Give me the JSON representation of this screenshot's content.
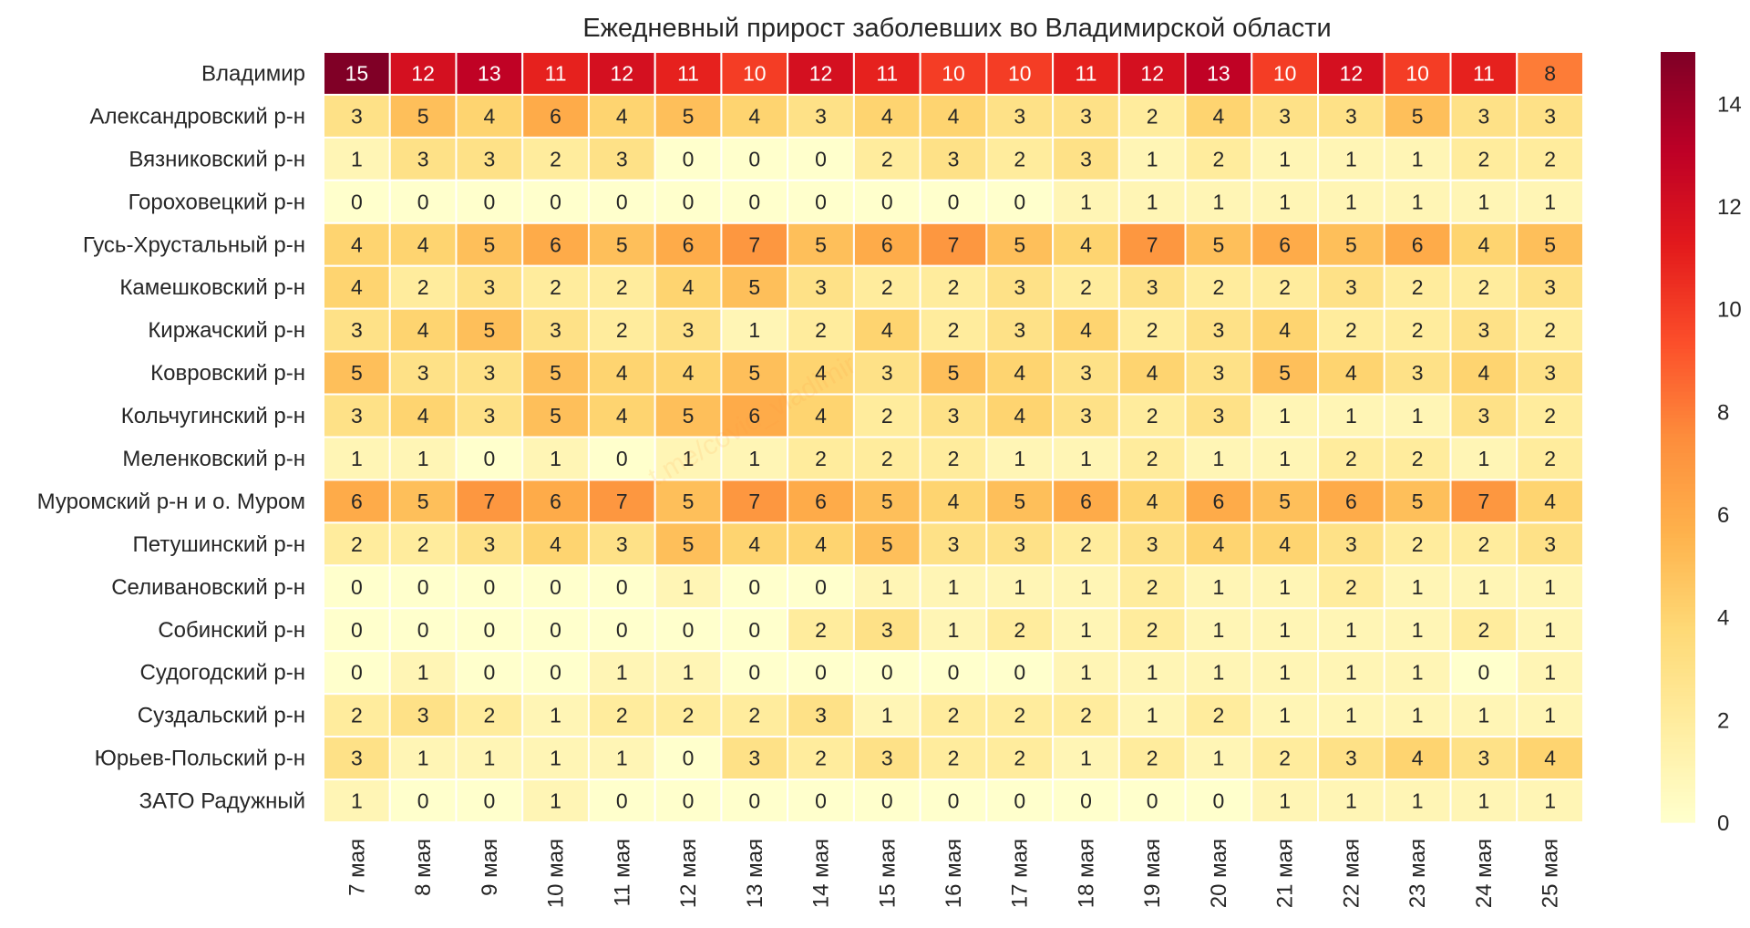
{
  "chart_data": {
    "type": "heatmap",
    "title": "Ежедневный прирост заболевших во Владимирской области",
    "xlabel": "",
    "ylabel": "",
    "columns": [
      "7 мая",
      "8 мая",
      "9 мая",
      "10 мая",
      "11 мая",
      "12 мая",
      "13 мая",
      "14 мая",
      "15 мая",
      "16 мая",
      "17 мая",
      "18 мая",
      "19 мая",
      "20 мая",
      "21 мая",
      "22 мая",
      "23 мая",
      "24 мая",
      "25 мая"
    ],
    "rows": [
      "Владимир",
      "Александровский р-н",
      "Вязниковский р-н",
      "Гороховецкий р-н",
      "Гусь-Хрустальный р-н",
      "Камешковский р-н",
      "Киржачский р-н",
      "Ковровский р-н",
      "Кольчугинский р-н",
      "Меленковский р-н",
      "Муромский р-н и о. Муром",
      "Петушинский р-н",
      "Селивановский р-н",
      "Собинский р-н",
      "Судогодский р-н",
      "Суздальский р-н",
      "Юрьев-Польский р-н",
      "ЗАТО Радужный"
    ],
    "values": [
      [
        15,
        12,
        13,
        11,
        12,
        11,
        10,
        12,
        11,
        10,
        10,
        11,
        12,
        13,
        10,
        12,
        10,
        11,
        8
      ],
      [
        3,
        5,
        4,
        6,
        4,
        5,
        4,
        3,
        4,
        4,
        3,
        3,
        2,
        4,
        3,
        3,
        5,
        3,
        3
      ],
      [
        1,
        3,
        3,
        2,
        3,
        0,
        0,
        0,
        2,
        3,
        2,
        3,
        1,
        2,
        1,
        1,
        1,
        2,
        2
      ],
      [
        0,
        0,
        0,
        0,
        0,
        0,
        0,
        0,
        0,
        0,
        0,
        1,
        1,
        1,
        1,
        1,
        1,
        1,
        1
      ],
      [
        4,
        4,
        5,
        6,
        5,
        6,
        7,
        5,
        6,
        7,
        5,
        4,
        7,
        5,
        6,
        5,
        6,
        4,
        5
      ],
      [
        4,
        2,
        3,
        2,
        2,
        4,
        5,
        3,
        2,
        2,
        3,
        2,
        3,
        2,
        2,
        3,
        2,
        2,
        3
      ],
      [
        3,
        4,
        5,
        3,
        2,
        3,
        1,
        2,
        4,
        2,
        3,
        4,
        2,
        3,
        4,
        2,
        2,
        3,
        2
      ],
      [
        5,
        3,
        3,
        5,
        4,
        4,
        5,
        4,
        3,
        5,
        4,
        3,
        4,
        3,
        5,
        4,
        3,
        4,
        3
      ],
      [
        3,
        4,
        3,
        5,
        4,
        5,
        6,
        4,
        2,
        3,
        4,
        3,
        2,
        3,
        1,
        1,
        1,
        3,
        2
      ],
      [
        1,
        1,
        0,
        1,
        0,
        1,
        1,
        2,
        2,
        2,
        1,
        1,
        2,
        1,
        1,
        2,
        2,
        1,
        2
      ],
      [
        6,
        5,
        7,
        6,
        7,
        5,
        7,
        6,
        5,
        4,
        5,
        6,
        4,
        6,
        5,
        6,
        5,
        7,
        4
      ],
      [
        2,
        2,
        3,
        4,
        3,
        5,
        4,
        4,
        5,
        3,
        3,
        2,
        3,
        4,
        4,
        3,
        2,
        2,
        3
      ],
      [
        0,
        0,
        0,
        0,
        0,
        1,
        0,
        0,
        1,
        1,
        1,
        1,
        2,
        1,
        1,
        2,
        1,
        1,
        1
      ],
      [
        0,
        0,
        0,
        0,
        0,
        0,
        0,
        2,
        3,
        1,
        2,
        1,
        2,
        1,
        1,
        1,
        1,
        2,
        1
      ],
      [
        0,
        1,
        0,
        0,
        1,
        1,
        0,
        0,
        0,
        0,
        0,
        1,
        1,
        1,
        1,
        1,
        1,
        0,
        1
      ],
      [
        2,
        3,
        2,
        1,
        2,
        2,
        2,
        3,
        1,
        2,
        2,
        2,
        1,
        2,
        1,
        1,
        1,
        1,
        1
      ],
      [
        3,
        1,
        1,
        1,
        1,
        0,
        3,
        2,
        3,
        2,
        2,
        1,
        2,
        1,
        2,
        3,
        4,
        3,
        4
      ],
      [
        1,
        0,
        0,
        1,
        0,
        0,
        0,
        0,
        0,
        0,
        0,
        0,
        0,
        0,
        1,
        1,
        1,
        1,
        1
      ]
    ],
    "color_scale": {
      "colormap": "YlOrRd",
      "min": 0,
      "max": 15,
      "ticks": [
        0,
        2,
        4,
        6,
        8,
        10,
        12,
        14
      ],
      "stops": [
        "#ffffcc",
        "#ffeda0",
        "#fed976",
        "#feb24c",
        "#fd8d3c",
        "#fc4e2a",
        "#e31a1c",
        "#bd0026",
        "#800026"
      ]
    },
    "annotations": "cell values shown",
    "grid": false,
    "watermark": "t.me/covid_vladimir"
  }
}
